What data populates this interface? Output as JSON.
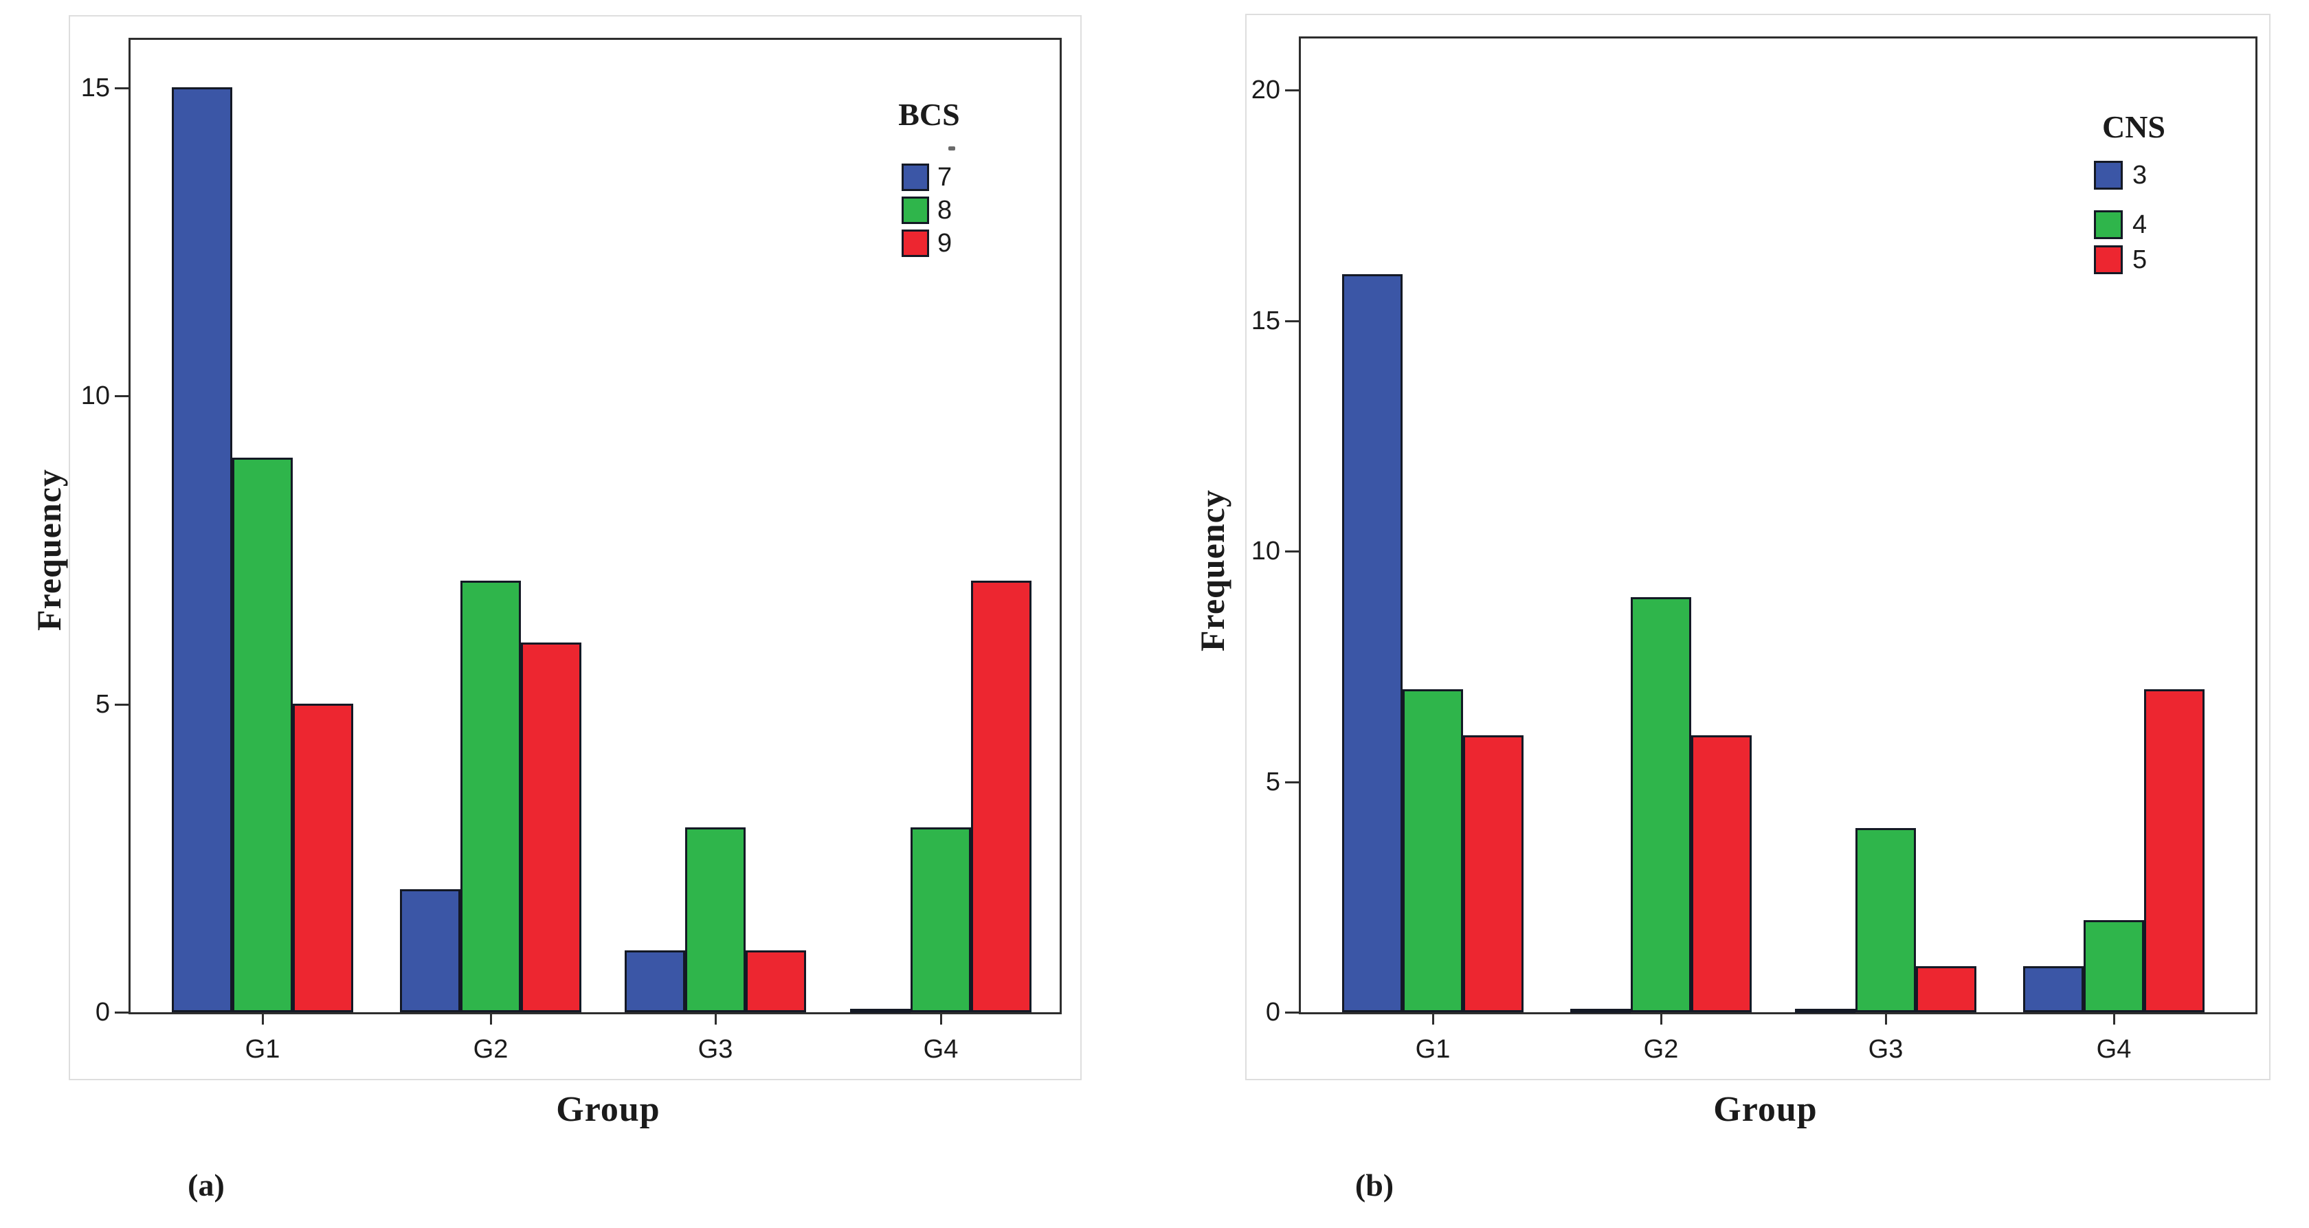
{
  "chart_data": [
    {
      "type": "bar",
      "panel": "a",
      "caption": "(a)",
      "legend_title": "BCS",
      "ylabel": "Frequency",
      "xlabel": "Group",
      "categories": [
        "G1",
        "G2",
        "G3",
        "G4"
      ],
      "yticks": [
        0,
        5,
        10,
        15
      ],
      "ylim": [
        0,
        15.8
      ],
      "grid": false,
      "legend_position": "top-right-inside",
      "series": [
        {
          "name": "7",
          "color": "#3B56A6",
          "values": [
            15,
            2,
            1,
            0
          ]
        },
        {
          "name": "8",
          "color": "#2FB54B",
          "values": [
            9,
            7,
            3,
            3
          ]
        },
        {
          "name": "9",
          "color": "#ED2630",
          "values": [
            5,
            6,
            1,
            7
          ]
        }
      ]
    },
    {
      "type": "bar",
      "panel": "b",
      "caption": "(b)",
      "legend_title": "CNS",
      "ylabel": "Frequency",
      "xlabel": "Group",
      "categories": [
        "G1",
        "G2",
        "G3",
        "G4"
      ],
      "yticks": [
        0,
        5,
        10,
        15,
        20
      ],
      "ylim": [
        0,
        21.2
      ],
      "grid": false,
      "legend_position": "top-right-inside",
      "series": [
        {
          "name": "3",
          "color": "#3B56A6",
          "values": [
            16,
            0,
            0,
            1
          ]
        },
        {
          "name": "4",
          "color": "#2FB54B",
          "values": [
            7,
            9,
            4,
            2
          ]
        },
        {
          "name": "5",
          "color": "#ED2630",
          "values": [
            6,
            6,
            1,
            7
          ]
        }
      ]
    }
  ],
  "colors": {
    "bar_blue": "#3B56A6",
    "bar_green": "#2FB54B",
    "bar_red": "#ED2630",
    "bar_outline": "#141925",
    "axis": "#2E2E2E",
    "panel_border": "#DEDEDE",
    "text": "#1B1B1B"
  }
}
